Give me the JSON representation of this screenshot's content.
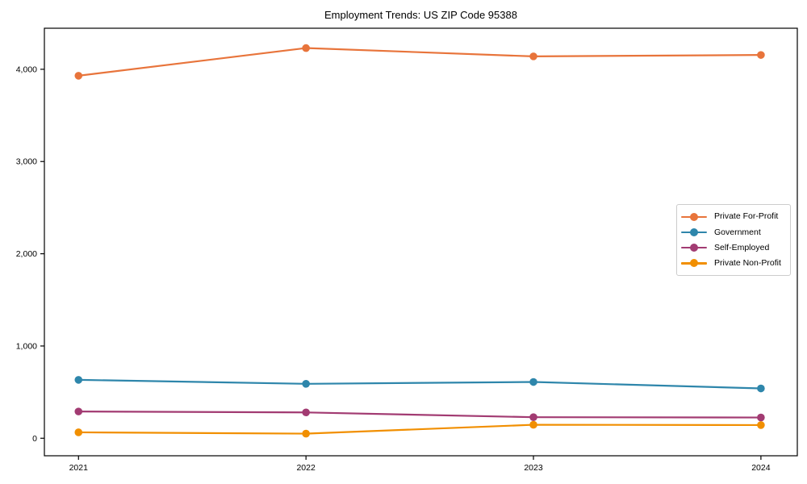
{
  "figure": {
    "background": "#ffffff",
    "spine_color": "#000000",
    "tick_color": "#000000"
  },
  "chart_data": {
    "type": "line",
    "title": "Employment Trends: US ZIP Code 95388",
    "x": [
      2021,
      2022,
      2023,
      2024
    ],
    "xtick_labels": [
      "2021",
      "2022",
      "2023",
      "2024"
    ],
    "yticks": [
      0,
      1000,
      2000,
      3000,
      4000
    ],
    "ytick_labels": [
      "0",
      "1,000",
      "2,000",
      "3,000",
      "4,000"
    ],
    "xlim": [
      2020.85,
      2024.16
    ],
    "ylim": [
      -190,
      4445
    ],
    "grid": false,
    "legend_position": "center right",
    "series": [
      {
        "name": "Private For-Profit",
        "color": "#E8743B",
        "values": [
          3930,
          4230,
          4140,
          4155
        ]
      },
      {
        "name": "Government",
        "color": "#2E86AB",
        "values": [
          633,
          590,
          610,
          540
        ]
      },
      {
        "name": "Self-Employed",
        "color": "#A23B72",
        "values": [
          290,
          280,
          228,
          225
        ]
      },
      {
        "name": "Private Non-Profit",
        "color": "#F18F01",
        "values": [
          64,
          50,
          146,
          143
        ]
      }
    ]
  }
}
